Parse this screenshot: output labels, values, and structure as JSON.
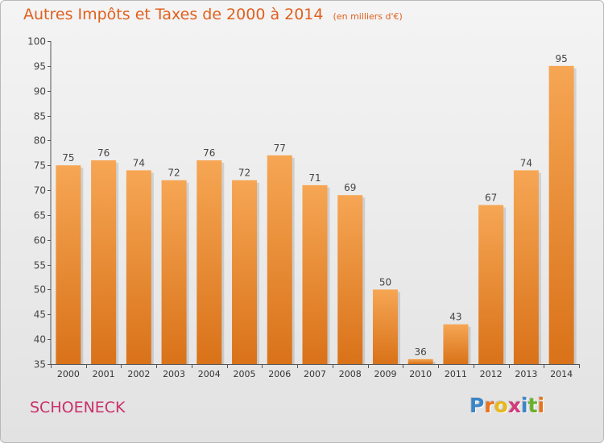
{
  "title": {
    "main": "Autres Impôts et Taxes de 2000 à 2014",
    "unit": "(en milliers d'€)"
  },
  "commune": "SCHOENECK",
  "logo": {
    "text": "Proxiti",
    "letter_colors": [
      "#3a86c8",
      "#e8731c",
      "#e8b81c",
      "#d23a7a",
      "#3a86c8",
      "#6ab02e",
      "#e8731c"
    ]
  },
  "colors": {
    "title": "#e0601e",
    "commune": "#c9306a",
    "bar_top": "#f6a654",
    "bar_bottom": "#d97219"
  },
  "chart_data": {
    "type": "bar",
    "categories": [
      "2000",
      "2001",
      "2002",
      "2003",
      "2004",
      "2005",
      "2006",
      "2007",
      "2008",
      "2009",
      "2010",
      "2011",
      "2012",
      "2013",
      "2014"
    ],
    "values": [
      75,
      76,
      74,
      72,
      76,
      72,
      77,
      71,
      69,
      50,
      36,
      43,
      67,
      74,
      95
    ],
    "title": "Autres Impôts et Taxes de 2000 à 2014",
    "ylabel": "",
    "xlabel": "",
    "ylim": [
      35,
      100
    ],
    "yticks": [
      35,
      40,
      45,
      50,
      55,
      60,
      65,
      70,
      75,
      80,
      85,
      90,
      95,
      100
    ],
    "grid": false,
    "data_labels": true
  }
}
